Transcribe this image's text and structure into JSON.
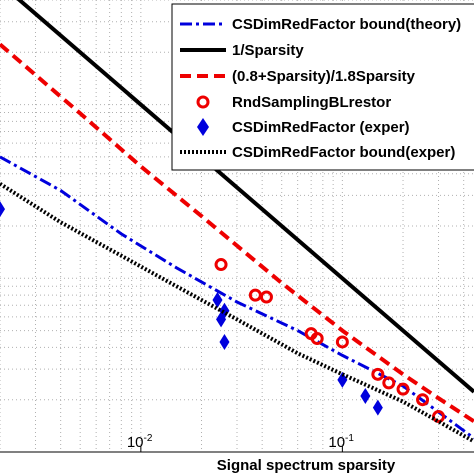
{
  "chart_data": {
    "type": "line",
    "title": "",
    "xlabel": "Signal spectrum sparsity",
    "ylabel": "",
    "x_scale": "log",
    "y_scale": "log",
    "xlim": [
      0.002,
      0.45
    ],
    "ylim": [
      1.0,
      400
    ],
    "grid": true,
    "legend_position": "top-right",
    "xtick_labels": [
      {
        "value": 0.01,
        "base": "10",
        "exp": "-2"
      },
      {
        "value": 0.1,
        "base": "10",
        "exp": "-1"
      }
    ],
    "colors": {
      "theory": "#0000dd",
      "inverse": "#000000",
      "approx": "#ee0000",
      "rnd": "#ee0000",
      "exper": "#0000dd",
      "bound_exper": "#000000"
    },
    "series": [
      {
        "id": "theory",
        "name": "CSDimRedFactor bound(theory)",
        "style": "dashdot",
        "x": [
          0.002,
          0.004,
          0.008,
          0.015,
          0.03,
          0.06,
          0.1,
          0.2,
          0.3,
          0.45
        ],
        "y": [
          50,
          32,
          18,
          11.5,
          7.3,
          5.0,
          3.6,
          2.4,
          1.7,
          1.2
        ]
      },
      {
        "id": "inverse",
        "name": "1/Sparsity",
        "style": "solid",
        "x": [
          0.002,
          0.45
        ],
        "y": [
          500,
          2.22
        ]
      },
      {
        "id": "approx",
        "name": "(0.8+Sparsity)/1.8Sparsity",
        "style": "dashed",
        "x": [
          0.002,
          0.005,
          0.01,
          0.02,
          0.05,
          0.1,
          0.2,
          0.3,
          0.45
        ],
        "y": [
          222,
          89,
          44,
          22.8,
          9.4,
          5.0,
          2.8,
          2.04,
          1.5
        ]
      },
      {
        "id": "rnd",
        "name": "RndSamplingBLrestor",
        "style": "marker-circle",
        "x": [
          0.025,
          0.037,
          0.042,
          0.07,
          0.075,
          0.1,
          0.15,
          0.17,
          0.2,
          0.25,
          0.3
        ],
        "y": [
          12,
          8.0,
          7.8,
          4.8,
          4.5,
          4.3,
          2.8,
          2.5,
          2.3,
          2.0,
          1.6
        ]
      },
      {
        "id": "exper",
        "name": "CSDimRedFactor (exper)",
        "style": "marker-diamond",
        "x": [
          0.002,
          0.024,
          0.026,
          0.025,
          0.026,
          0.1,
          0.13,
          0.15
        ],
        "y": [
          25,
          7.5,
          6.5,
          5.8,
          4.3,
          2.6,
          2.1,
          1.8
        ]
      },
      {
        "id": "bound_exper",
        "name": "CSDimRedFactor bound(exper)",
        "style": "dotted",
        "x": [
          0.002,
          0.004,
          0.008,
          0.015,
          0.03,
          0.06,
          0.1,
          0.2,
          0.3,
          0.45
        ],
        "y": [
          35,
          21,
          13.5,
          9.0,
          5.8,
          3.7,
          2.8,
          1.95,
          1.5,
          1.15
        ]
      }
    ]
  }
}
